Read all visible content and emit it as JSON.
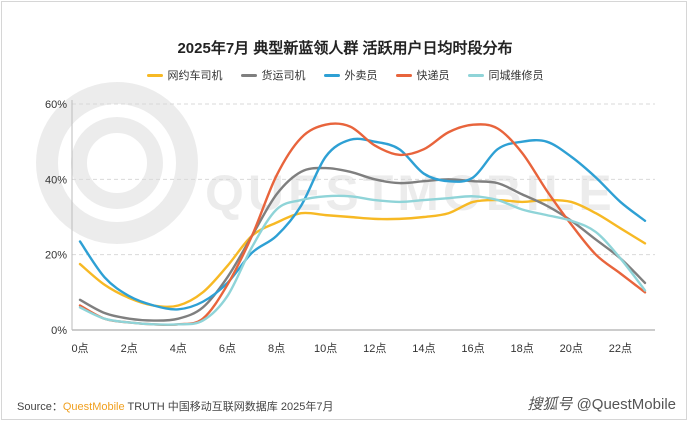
{
  "page": {
    "source_label": "Source：",
    "source_brand": "QuestMobile",
    "source_rest": " TRUTH 中国移动互联网数据库 2025年7月",
    "watermark_bottom_left": "搜狐号",
    "watermark_bottom_right": "@QuestMobile",
    "watermark_center": "QUESTMOBILE"
  },
  "chart_data": {
    "type": "line",
    "title": "2025年7月 典型新蓝领人群 活跃用户日均时段分布",
    "xlabel": "",
    "ylabel": "",
    "x": [
      "0点",
      "1点",
      "2点",
      "3点",
      "4点",
      "5点",
      "6点",
      "7点",
      "8点",
      "9点",
      "10点",
      "11点",
      "12点",
      "13点",
      "14点",
      "15点",
      "16点",
      "17点",
      "18点",
      "19点",
      "20点",
      "21点",
      "22点",
      "23点"
    ],
    "x_tick_labels": [
      "0点",
      "2点",
      "4点",
      "6点",
      "8点",
      "10点",
      "12点",
      "14点",
      "16点",
      "18点",
      "20点",
      "22点"
    ],
    "y_tick_labels": [
      "0%",
      "20%",
      "40%",
      "60%"
    ],
    "ylim": [
      0,
      60
    ],
    "grid": "horizontal",
    "legend_position": "top",
    "series": [
      {
        "name": "网约车司机",
        "color": "#f7b924",
        "values": [
          17.5,
          12,
          8.5,
          6.5,
          6.5,
          10,
          17,
          25,
          28.5,
          31,
          30.5,
          30,
          29.5,
          29.5,
          30,
          31,
          34,
          34.5,
          34,
          34.5,
          34,
          31,
          27,
          23
        ]
      },
      {
        "name": "货运司机",
        "color": "#7f7f7f",
        "values": [
          8,
          4.5,
          3,
          2.5,
          3,
          6,
          14,
          25,
          36,
          42,
          43,
          42,
          40,
          39,
          39.5,
          40,
          39.5,
          39,
          36,
          33,
          29,
          24,
          19,
          12.5
        ]
      },
      {
        "name": "外卖员",
        "color": "#2ea0d4",
        "values": [
          23.5,
          14,
          9,
          6.5,
          5.5,
          7.5,
          12.5,
          20.5,
          25,
          33,
          46,
          50.5,
          50,
          48,
          41.5,
          39.5,
          40.5,
          48,
          50,
          50,
          46,
          40.5,
          34,
          29
        ]
      },
      {
        "name": "快递员",
        "color": "#e8643c",
        "values": [
          6.5,
          3,
          2,
          1.5,
          1.5,
          3,
          12,
          25,
          41,
          51,
          54.5,
          54,
          49,
          46.5,
          48,
          52.5,
          54.5,
          53.5,
          47,
          37,
          28,
          20,
          15,
          10
        ]
      },
      {
        "name": "同城维修员",
        "color": "#8fd4d8",
        "values": [
          6,
          3,
          2,
          1.5,
          1.5,
          2.5,
          9,
          22,
          32,
          34.5,
          35.5,
          35.5,
          34.5,
          34,
          34.5,
          35,
          35.5,
          34.5,
          32,
          30.5,
          29,
          26,
          19,
          10.5
        ]
      }
    ]
  }
}
